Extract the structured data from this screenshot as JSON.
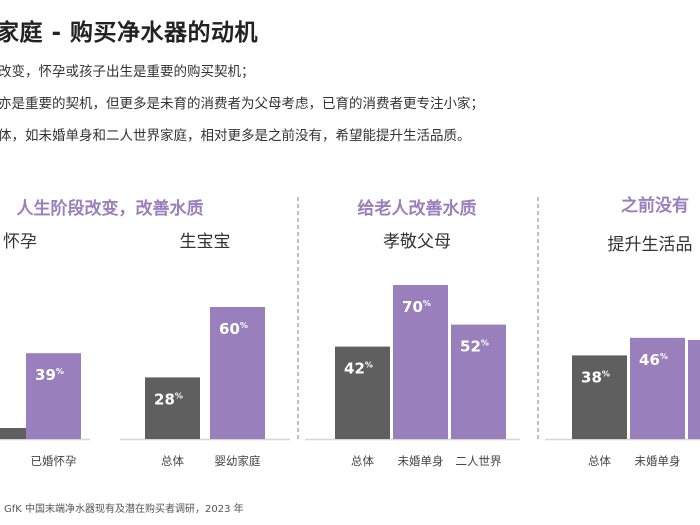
{
  "page": {
    "title": "家庭 - 购买净水器的动机",
    "bullets": [
      "改变，怀孕或孩子出生是重要的购买契机；",
      "亦是重要的契机，但更多是未育的消费者为父母考虑，已育的消费者更专注小家；",
      "体，如未婚单身和二人世界家庭，相对更多是之前没有，希望能提升生活品质。"
    ],
    "source": "GfK 中国末端净水器现有及潜在购买者调研，2023 年"
  },
  "colors": {
    "accent_purple": "#9A7FBD",
    "gray_bar": "#5F5F5F",
    "white_text": "#FFFFFF",
    "divider": "#9A9A9A"
  },
  "chart_data": {
    "type": "bar",
    "unit": "%",
    "panels": [
      {
        "heading": "人生阶段改变，改善水质",
        "groups": [
          {
            "label": "怀孕",
            "bars": [
              {
                "category": "",
                "value": 5,
                "value_label": "",
                "color": "gray"
              },
              {
                "category": "已婚怀孕",
                "value": 39,
                "value_label": "39",
                "color": "purple"
              }
            ]
          },
          {
            "label": "生宝宝",
            "bars": [
              {
                "category": "总体",
                "value": 28,
                "value_label": "28",
                "color": "gray"
              },
              {
                "category": "婴幼家庭",
                "value": 60,
                "value_label": "60",
                "color": "purple"
              }
            ]
          }
        ]
      },
      {
        "heading": "给老人改善水质",
        "groups": [
          {
            "label": "孝敬父母",
            "bars": [
              {
                "category": "总体",
                "value": 42,
                "value_label": "42",
                "color": "gray"
              },
              {
                "category": "未婚单身",
                "value": 70,
                "value_label": "70",
                "color": "purple"
              },
              {
                "category": "二人世界",
                "value": 52,
                "value_label": "52",
                "color": "purple"
              }
            ]
          }
        ]
      },
      {
        "heading": "之前没有",
        "groups": [
          {
            "label": "提升生活品",
            "bars": [
              {
                "category": "总体",
                "value": 38,
                "value_label": "38",
                "color": "gray"
              },
              {
                "category": "未婚单身",
                "value": 46,
                "value_label": "46",
                "color": "purple"
              },
              {
                "category": "",
                "value": 45,
                "value_label": "",
                "color": "purple"
              }
            ]
          }
        ]
      }
    ]
  }
}
